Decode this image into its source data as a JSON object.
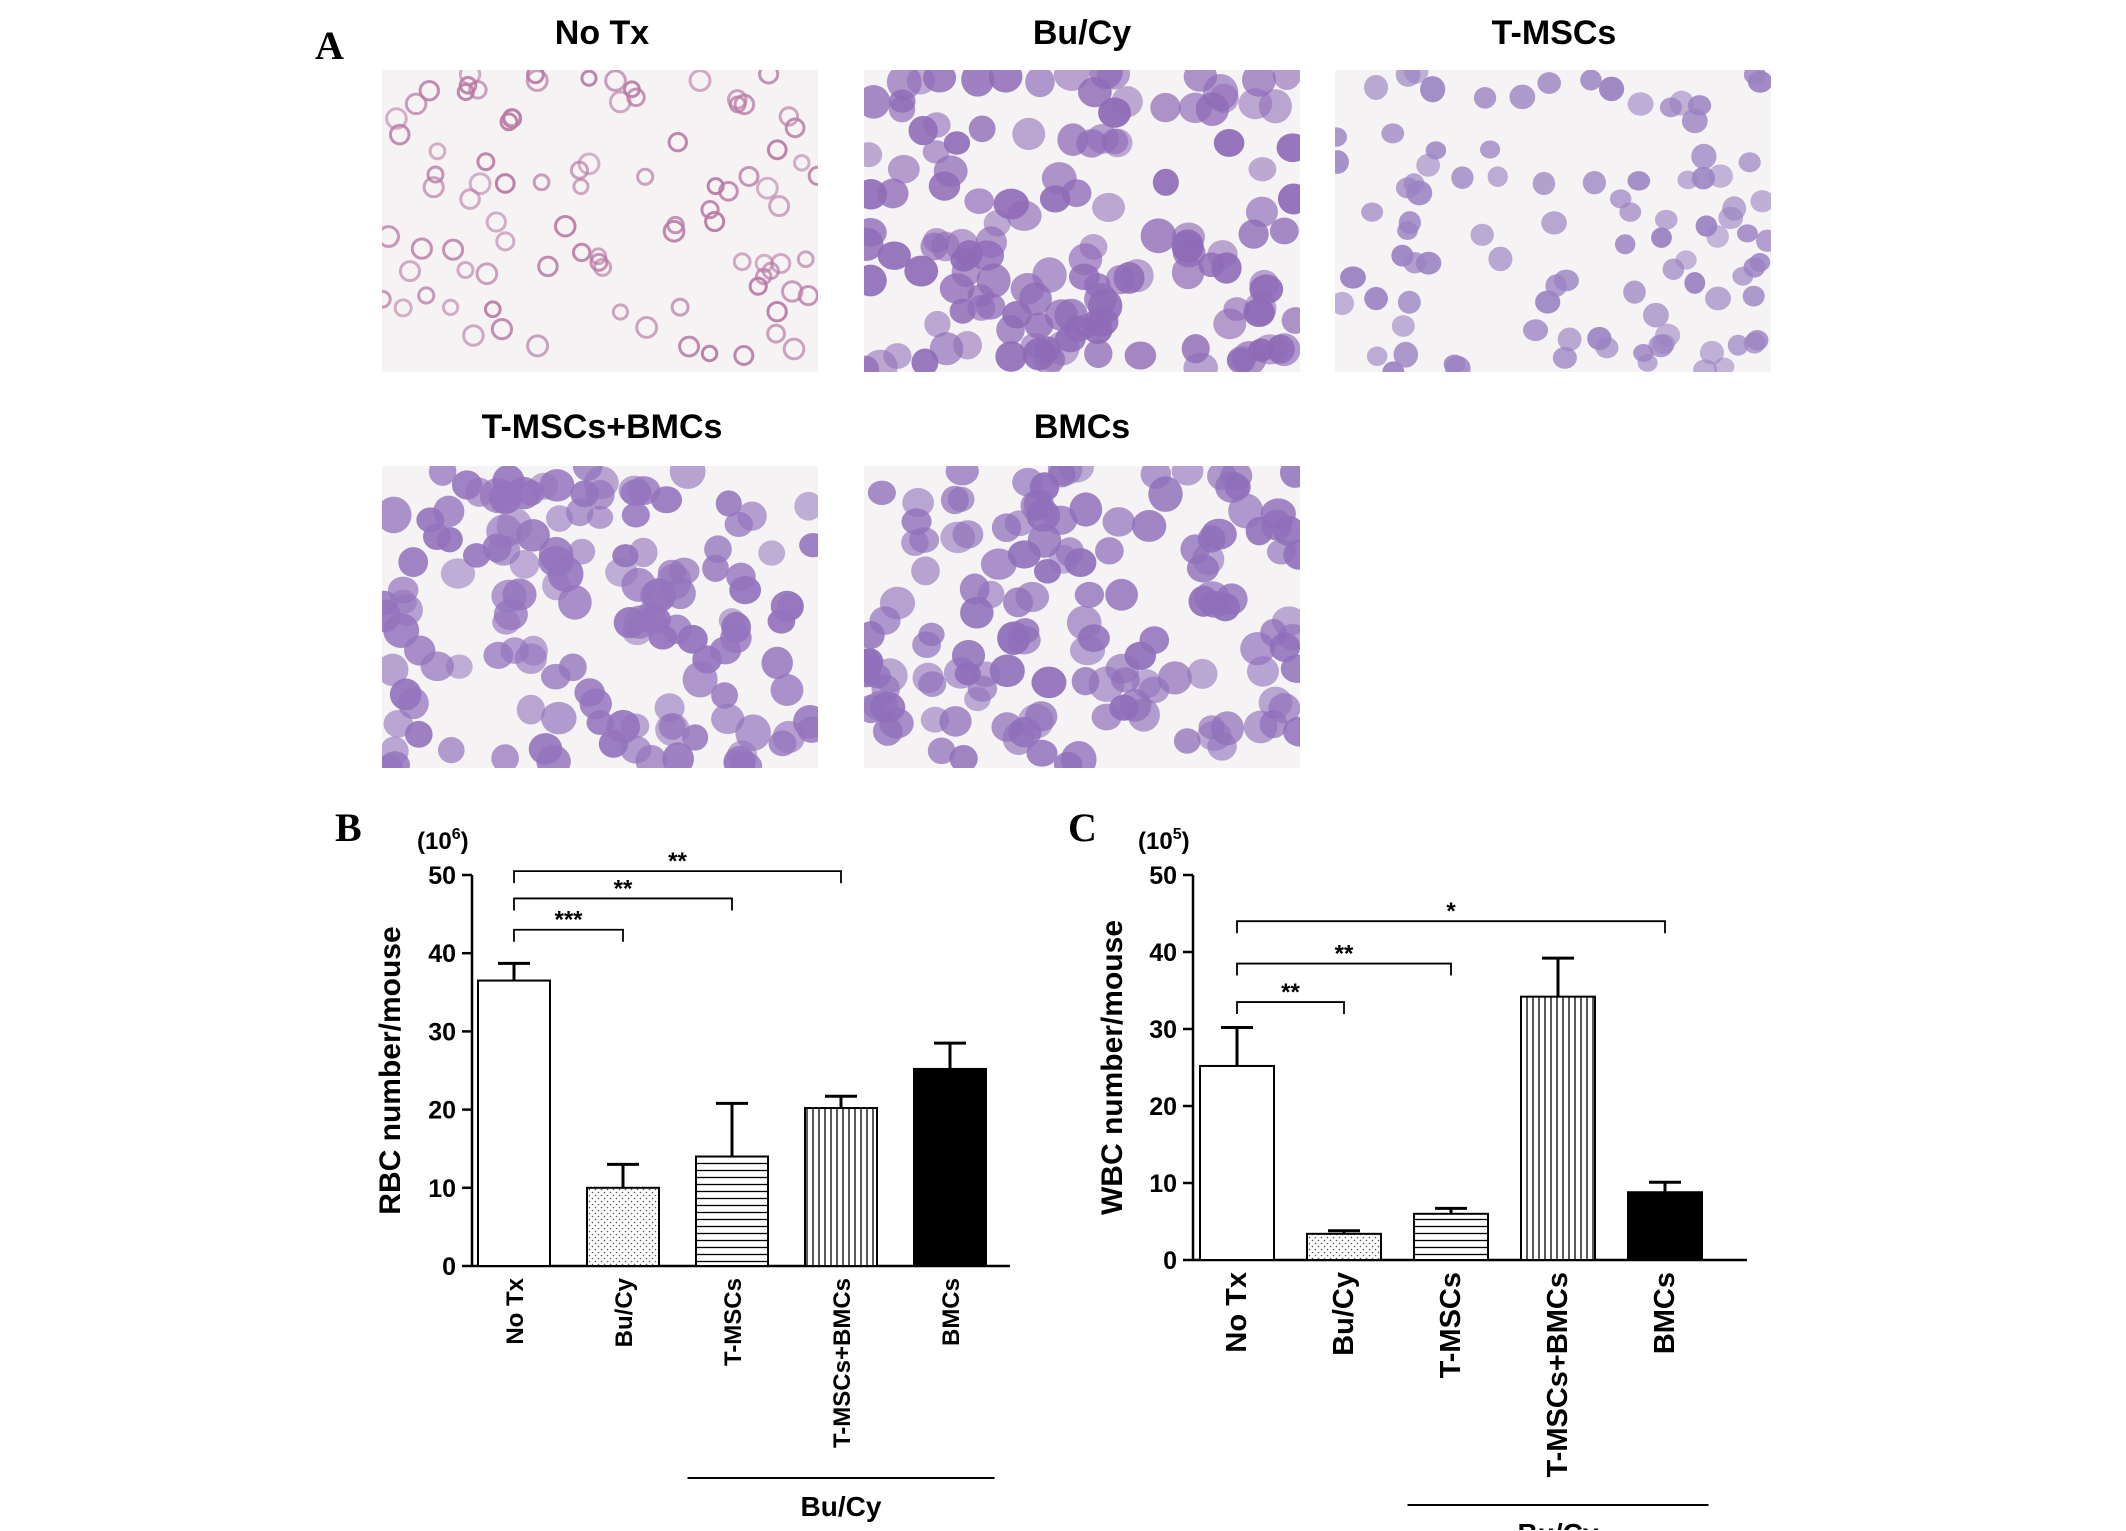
{
  "panel_a": {
    "letter": "A",
    "images": [
      {
        "label": "No Tx",
        "cell_color": "#b97aa6",
        "cell_size": "small"
      },
      {
        "label": "Bu/Cy",
        "cell_color": "#8f6bb7",
        "cell_size": "large"
      },
      {
        "label": "T-MSCs",
        "cell_color": "#9b82c2",
        "cell_size": "medium"
      },
      {
        "label": "T-MSCs+BMCs",
        "cell_color": "#9474bd",
        "cell_size": "large"
      },
      {
        "label": "BMCs",
        "cell_color": "#8f6fba",
        "cell_size": "large"
      }
    ]
  },
  "chart_data": [
    {
      "panel": "B",
      "type": "bar",
      "unit_label": "(10^6)",
      "unit_base": "10",
      "unit_exp": "6",
      "ylabel": "RBC  number/mouse",
      "ylim": [
        0,
        50
      ],
      "yticks": [
        "0",
        "10",
        "20",
        "30",
        "40",
        "50"
      ],
      "categories": [
        "No Tx",
        "Bu/Cy",
        "T-MSCs",
        "T-MSCs+BMCs",
        "BMCs"
      ],
      "values": [
        36.5,
        10,
        14,
        20.2,
        25.2
      ],
      "errors": [
        2.2,
        3.0,
        6.8,
        1.5,
        3.3
      ],
      "fills": [
        "white",
        "dots",
        "hlines",
        "vlines",
        "black"
      ],
      "group_label": "Bu/Cy",
      "group_range": [
        2,
        4
      ],
      "comparisons": [
        {
          "from": 0,
          "to": 1,
          "label": "***",
          "y": 43
        },
        {
          "from": 0,
          "to": 2,
          "label": "**",
          "y": 47
        },
        {
          "from": 0,
          "to": 3,
          "label": "**",
          "y": 50.5
        }
      ]
    },
    {
      "panel": "C",
      "type": "bar",
      "unit_label": "(10^5)",
      "unit_base": "10",
      "unit_exp": "5",
      "ylabel": "WBC number/mouse",
      "ylim": [
        0,
        50
      ],
      "yticks": [
        "0",
        "10",
        "20",
        "30",
        "40",
        "50"
      ],
      "categories": [
        "No Tx",
        "Bu/Cy",
        "T-MSCs",
        "T-MSCs+BMCs",
        "BMCs"
      ],
      "values": [
        25.2,
        3.4,
        6.0,
        34.2,
        8.8
      ],
      "errors": [
        5.0,
        0.4,
        0.7,
        5.0,
        1.3
      ],
      "fills": [
        "white",
        "dots",
        "hlines",
        "vlines",
        "black"
      ],
      "group_label": "Bu/Cy",
      "group_range": [
        2,
        4
      ],
      "comparisons": [
        {
          "from": 0,
          "to": 1,
          "label": "**",
          "y": 33.5
        },
        {
          "from": 0,
          "to": 2,
          "label": "**",
          "y": 38.5
        },
        {
          "from": 0,
          "to": 4,
          "label": "*",
          "y": 44
        }
      ]
    }
  ]
}
